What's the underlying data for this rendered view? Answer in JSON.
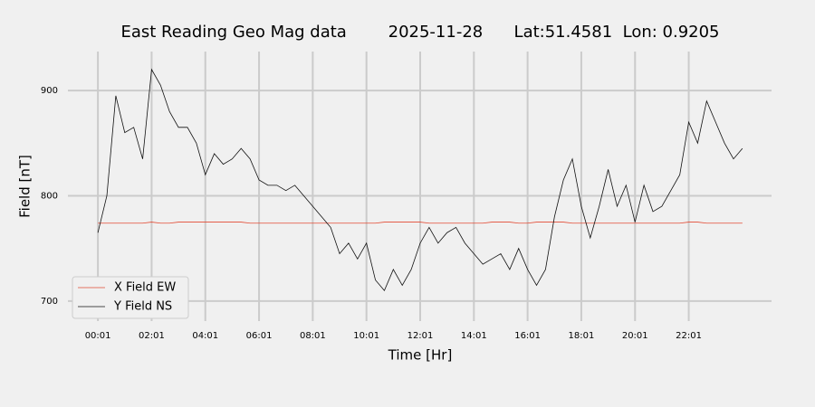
{
  "chart_data": {
    "type": "line",
    "title": "East Reading Geo Mag data        2025-11-28      Lat:51.4581  Lon: 0.9205",
    "x_label": "Time  [Hr]",
    "y_label": "Field  [nT]",
    "x": [
      1,
      21,
      41,
      61,
      81,
      101,
      121,
      141,
      161,
      181,
      201,
      221,
      241,
      261,
      281,
      301,
      321,
      341,
      361,
      381,
      401,
      421,
      441,
      461,
      481,
      501,
      521,
      541,
      561,
      581,
      601,
      621,
      641,
      661,
      681,
      701,
      721,
      741,
      761,
      781,
      801,
      821,
      841,
      861,
      881,
      901,
      921,
      941,
      961,
      981,
      1001,
      1021,
      1041,
      1061,
      1081,
      1101,
      1121,
      1141,
      1161,
      1181,
      1201,
      1221,
      1241,
      1261,
      1281,
      1301,
      1321,
      1341,
      1361,
      1381,
      1401,
      1421,
      1441
    ],
    "series": [
      {
        "name": "X Field EW",
        "color": "#e24a33",
        "values": [
          774,
          774,
          774,
          774,
          774,
          774,
          775,
          774,
          774,
          775,
          775,
          775,
          775,
          775,
          775,
          775,
          775,
          774,
          774,
          774,
          774,
          774,
          774,
          774,
          774,
          774,
          774,
          774,
          774,
          774,
          774,
          774,
          775,
          775,
          775,
          775,
          775,
          774,
          774,
          774,
          774,
          774,
          774,
          774,
          775,
          775,
          775,
          774,
          774,
          775,
          775,
          775,
          775,
          774,
          774,
          774,
          774,
          774,
          774,
          774,
          774,
          774,
          774,
          774,
          774,
          774,
          775,
          775,
          774,
          774,
          774,
          774,
          774
        ]
      },
      {
        "name": "Y Field NS",
        "color": "#111111",
        "values": [
          765,
          800,
          895,
          860,
          865,
          835,
          920,
          905,
          880,
          865,
          865,
          850,
          820,
          840,
          830,
          835,
          845,
          835,
          815,
          810,
          810,
          805,
          810,
          800,
          790,
          780,
          770,
          745,
          755,
          740,
          755,
          720,
          710,
          730,
          715,
          730,
          755,
          770,
          755,
          765,
          770,
          755,
          745,
          735,
          740,
          745,
          730,
          750,
          730,
          715,
          730,
          780,
          815,
          835,
          790,
          760,
          790,
          825,
          790,
          810,
          775,
          810,
          785,
          790,
          805,
          820,
          870,
          850,
          890,
          870,
          850,
          835,
          845
        ]
      }
    ],
    "xlim": [
      -66,
      1506
    ],
    "xticks": [
      {
        "value": 1,
        "label": "00:01"
      },
      {
        "value": 121,
        "label": "02:01"
      },
      {
        "value": 241,
        "label": "04:01"
      },
      {
        "value": 361,
        "label": "06:01"
      },
      {
        "value": 481,
        "label": "08:01"
      },
      {
        "value": 601,
        "label": "10:01"
      },
      {
        "value": 721,
        "label": "12:01"
      },
      {
        "value": 841,
        "label": "14:01"
      },
      {
        "value": 961,
        "label": "16:01"
      },
      {
        "value": 1081,
        "label": "18:01"
      },
      {
        "value": 1201,
        "label": "20:01"
      },
      {
        "value": 1321,
        "label": "22:01"
      }
    ],
    "ylim": [
      681,
      937
    ],
    "yticks": [
      700,
      800,
      900
    ],
    "grid": true,
    "legend": "lower left"
  }
}
